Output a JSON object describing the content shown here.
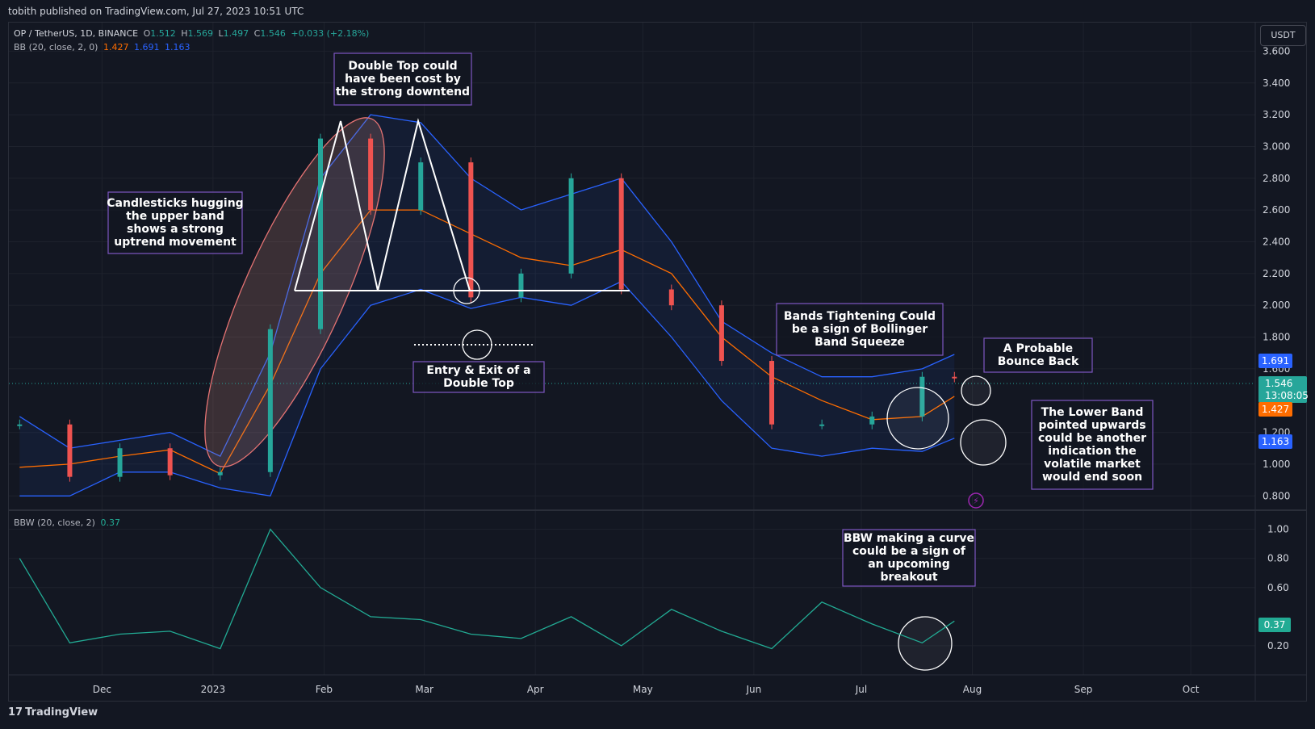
{
  "header": {
    "publisher_line": "tobith published on TradingView.com, Jul 27, 2023 10:51 UTC"
  },
  "legend": {
    "symbol": "OP / TetherUS, 1D, BINANCE",
    "o_label": "O",
    "o": "1.512",
    "h_label": "H",
    "h": "1.569",
    "l_label": "L",
    "l": "1.497",
    "c_label": "C",
    "c": "1.546",
    "change": "+0.033 (+2.18%)",
    "bb_label": "BB (20, close, 2, 0)",
    "bb_basis": "1.427",
    "bb_upper": "1.691",
    "bb_lower": "1.163",
    "bbw_label": "BBW (20, close, 2)",
    "bbw_value": "0.37"
  },
  "currency_button": "USDT",
  "footer": {
    "logo": "𝟭𝟳",
    "brand": "TradingView"
  },
  "colors": {
    "background": "#131722",
    "up": "#26a69a",
    "down": "#ef5350",
    "basis": "#ff6d00",
    "bands": "#2962ff",
    "bbw": "#22ab94",
    "annotation_border": "#7e57c2"
  },
  "price_badges": {
    "upper": "1.691",
    "last": "1.546",
    "countdown": "13:08:05",
    "basis": "1.427",
    "lower": "1.163",
    "bbw": "0.37"
  },
  "annotations": [
    {
      "id": "double-top",
      "lines": [
        "Double Top could",
        "have been cost by",
        "the strong downtend"
      ]
    },
    {
      "id": "candlesticks",
      "lines": [
        "Candlesticks hugging",
        "the upper band",
        "shows a strong",
        "uptrend movement"
      ]
    },
    {
      "id": "entry-exit",
      "lines": [
        "Entry & Exit of a",
        "Double Top"
      ]
    },
    {
      "id": "tightening",
      "lines": [
        "Bands Tightening Could",
        "be a sign of Bollinger",
        "Band Squeeze"
      ]
    },
    {
      "id": "bounce",
      "lines": [
        "A Probable",
        "Bounce Back"
      ]
    },
    {
      "id": "lower-band",
      "lines": [
        "The Lower Band",
        "pointed upwards",
        "could be another",
        "indication the",
        "volatile market",
        "would end soon"
      ]
    },
    {
      "id": "bbw-curve",
      "lines": [
        "BBW making a curve",
        "could be a sign of",
        "an upcoming",
        "breakout"
      ]
    }
  ],
  "chart_data": [
    {
      "type": "line",
      "title": "OP / TetherUS, 1D, BINANCE",
      "series": [
        {
          "name": "BB upper",
          "x": [
            "Nov 08",
            "Nov 22",
            "Dec 06",
            "Dec 20",
            "Jan 03",
            "Jan 17",
            "Jan 31",
            "Feb 14",
            "Feb 28",
            "Mar 14",
            "Mar 28",
            "Apr 11",
            "Apr 25",
            "May 09",
            "May 23",
            "Jun 06",
            "Jun 20",
            "Jul 04",
            "Jul 18",
            "Jul 27"
          ],
          "y": [
            1.3,
            1.1,
            1.15,
            1.2,
            1.05,
            1.7,
            2.8,
            3.2,
            3.15,
            2.8,
            2.6,
            2.7,
            2.8,
            2.4,
            1.9,
            1.7,
            1.55,
            1.55,
            1.6,
            1.691
          ]
        },
        {
          "name": "BB basis",
          "x": [
            "Nov 08",
            "Nov 22",
            "Dec 06",
            "Dec 20",
            "Jan 03",
            "Jan 17",
            "Jan 31",
            "Feb 14",
            "Feb 28",
            "Mar 14",
            "Mar 28",
            "Apr 11",
            "Apr 25",
            "May 09",
            "May 23",
            "Jun 06",
            "Jun 20",
            "Jul 04",
            "Jul 18",
            "Jul 27"
          ],
          "y": [
            0.98,
            1.0,
            1.05,
            1.09,
            0.94,
            1.5,
            2.2,
            2.6,
            2.6,
            2.45,
            2.3,
            2.25,
            2.35,
            2.2,
            1.8,
            1.55,
            1.4,
            1.28,
            1.3,
            1.427
          ]
        },
        {
          "name": "BB lower",
          "x": [
            "Nov 08",
            "Nov 22",
            "Dec 06",
            "Dec 20",
            "Jan 03",
            "Jan 17",
            "Jan 31",
            "Feb 14",
            "Feb 28",
            "Mar 14",
            "Mar 28",
            "Apr 11",
            "Apr 25",
            "May 09",
            "May 23",
            "Jun 06",
            "Jun 20",
            "Jul 04",
            "Jul 18",
            "Jul 27"
          ],
          "y": [
            0.8,
            0.8,
            0.95,
            0.95,
            0.85,
            0.8,
            1.6,
            2.0,
            2.1,
            1.98,
            2.05,
            2.0,
            2.15,
            1.8,
            1.4,
            1.1,
            1.05,
            1.1,
            1.08,
            1.163
          ]
        },
        {
          "name": "Close",
          "x": [
            "Nov 08",
            "Nov 22",
            "Dec 06",
            "Dec 20",
            "Jan 03",
            "Jan 17",
            "Jan 31",
            "Feb 14",
            "Feb 28",
            "Mar 14",
            "Mar 28",
            "Apr 11",
            "Apr 25",
            "May 09",
            "May 23",
            "Jun 06",
            "Jun 20",
            "Jul 04",
            "Jul 18",
            "Jul 27"
          ],
          "y": [
            1.25,
            0.92,
            1.1,
            0.93,
            0.95,
            1.85,
            3.05,
            2.6,
            2.9,
            2.05,
            2.2,
            2.8,
            2.1,
            2.0,
            1.65,
            1.25,
            1.25,
            1.3,
            1.55,
            1.546
          ]
        }
      ],
      "xlabels": [
        "Dec",
        "2023",
        "Feb",
        "Mar",
        "Apr",
        "May",
        "Jun",
        "Jul",
        "Aug",
        "Sep",
        "Oct"
      ],
      "yticks": [
        "3.600",
        "3.400",
        "3.200",
        "3.000",
        "2.800",
        "2.600",
        "2.400",
        "2.200",
        "2.000",
        "1.800",
        "1.600",
        "1.200",
        "1.000",
        "0.800"
      ],
      "ylim": [
        0.72,
        3.78
      ],
      "grid": true
    },
    {
      "type": "line",
      "title": "BBW (20, close, 2)",
      "series": [
        {
          "name": "BBW",
          "x": [
            "Nov 08",
            "Nov 22",
            "Dec 06",
            "Dec 20",
            "Jan 03",
            "Jan 17",
            "Jan 31",
            "Feb 14",
            "Feb 28",
            "Mar 14",
            "Mar 28",
            "Apr 11",
            "Apr 25",
            "May 09",
            "May 23",
            "Jun 06",
            "Jun 20",
            "Jul 04",
            "Jul 18",
            "Jul 27"
          ],
          "y": [
            0.8,
            0.22,
            0.28,
            0.3,
            0.18,
            1.0,
            0.6,
            0.4,
            0.38,
            0.28,
            0.25,
            0.4,
            0.2,
            0.45,
            0.3,
            0.18,
            0.5,
            0.35,
            0.22,
            0.37
          ]
        }
      ],
      "yticks": [
        "1.00",
        "0.80",
        "0.60",
        "0.20"
      ],
      "ylim": [
        0.0,
        1.12
      ],
      "grid": true
    }
  ]
}
